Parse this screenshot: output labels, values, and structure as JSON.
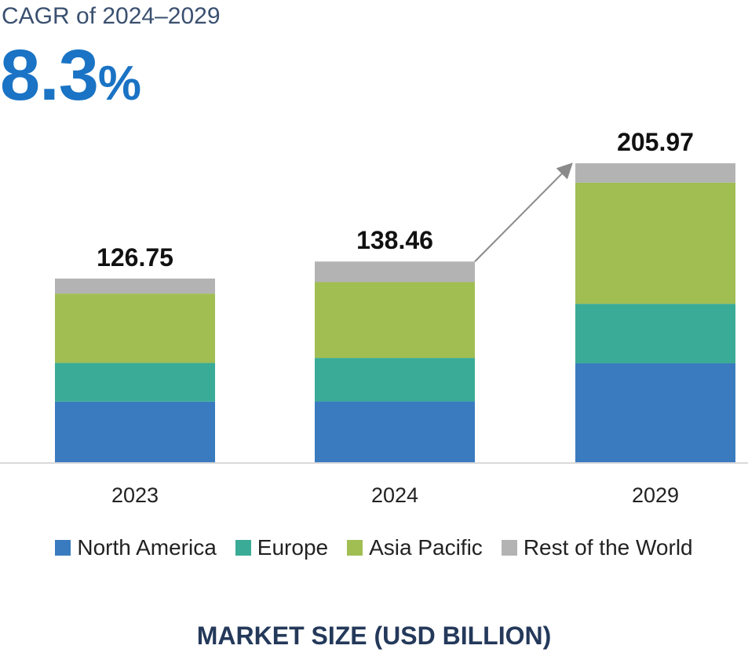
{
  "cagr": {
    "label": "CAGR of 2024–2029",
    "value": "8.3",
    "unit": "%"
  },
  "chart_data": {
    "type": "bar",
    "stacked": true,
    "categories": [
      "2023",
      "2024",
      "2029"
    ],
    "totals": [
      "126.75",
      "138.46",
      "205.97"
    ],
    "series": [
      {
        "name": "North America",
        "color": "#3a7bbf",
        "values": [
          42.2,
          42.3,
          68.5
        ]
      },
      {
        "name": "Europe",
        "color": "#3aab96",
        "values": [
          26.6,
          29.9,
          40.9
        ]
      },
      {
        "name": "Asia Pacific",
        "color": "#a0be52",
        "values": [
          47.6,
          52.1,
          83.3
        ]
      },
      {
        "name": "Rest of the World",
        "color": "#b3b3b3",
        "values": [
          10.35,
          14.16,
          13.27
        ]
      }
    ],
    "xlabel": "MARKET SIZE (USD BILLION)",
    "ylim": [
      0,
      206
    ],
    "grid": false,
    "legend_position": "bottom",
    "annotation": "growth arrow from 2024 to 2029"
  }
}
